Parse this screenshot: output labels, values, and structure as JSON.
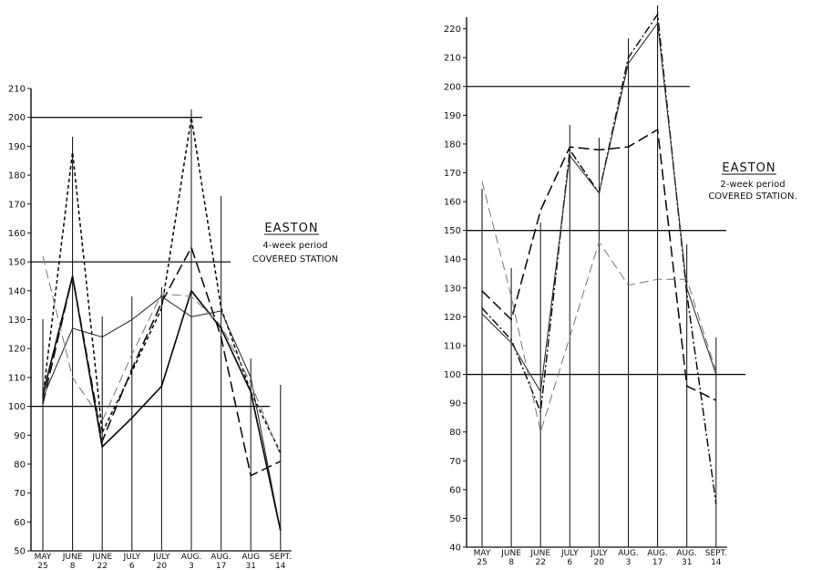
{
  "chart_data": [
    {
      "type": "line",
      "title": "EASTON",
      "subtitle_lines": [
        "4-week period",
        "COVERED STATION"
      ],
      "categories": [
        {
          "month": "MAY",
          "day": "25"
        },
        {
          "month": "JUNE",
          "day": "8"
        },
        {
          "month": "JUNE",
          "day": "22"
        },
        {
          "month": "JULY",
          "day": "6"
        },
        {
          "month": "JULY",
          "day": "20"
        },
        {
          "month": "AUG.",
          "day": "3"
        },
        {
          "month": "AUG.",
          "day": "17"
        },
        {
          "month": "AUG",
          "day": "31"
        },
        {
          "month": "SEPT.",
          "day": "14"
        }
      ],
      "ylim": [
        50,
        210
      ],
      "yticks": [
        50,
        60,
        70,
        80,
        90,
        100,
        110,
        120,
        130,
        140,
        150,
        160,
        170,
        180,
        190,
        200,
        210
      ],
      "reference_lines": [
        100,
        150,
        200
      ],
      "series": [
        {
          "style": "short-dash",
          "values": [
            103,
            188,
            91,
            112,
            134,
            200,
            134,
            105,
            84
          ]
        },
        {
          "style": "long-dash",
          "values": [
            101,
            145,
            88,
            113,
            136,
            155,
            124,
            76,
            81
          ]
        },
        {
          "style": "solid",
          "values": [
            103,
            127,
            124,
            130,
            138,
            131,
            133,
            110,
            57
          ]
        },
        {
          "style": "solid-heavy",
          "values": [
            104,
            145,
            86,
            96,
            107,
            140,
            127,
            105,
            57
          ]
        },
        {
          "style": "light-dash",
          "values": [
            152,
            110,
            95,
            118,
            139,
            138,
            128,
            108,
            83
          ]
        }
      ]
    },
    {
      "type": "line",
      "title": "EASTON",
      "subtitle_lines": [
        "2-week period",
        "COVERED STATION."
      ],
      "categories": [
        {
          "month": "MAY",
          "day": "25"
        },
        {
          "month": "JUNE",
          "day": "8"
        },
        {
          "month": "JUNE",
          "day": "22"
        },
        {
          "month": "JULY",
          "day": "6"
        },
        {
          "month": "JULY",
          "day": "20"
        },
        {
          "month": "AUG.",
          "day": "3"
        },
        {
          "month": "AUG.",
          "day": "17"
        },
        {
          "month": "AUG.",
          "day": "31"
        },
        {
          "month": "SEPT.",
          "day": "14"
        }
      ],
      "ylim": [
        40,
        224
      ],
      "yticks": [
        40,
        50,
        60,
        70,
        80,
        90,
        100,
        110,
        120,
        130,
        140,
        150,
        160,
        170,
        180,
        190,
        200,
        210,
        220
      ],
      "reference_lines": [
        100,
        150,
        200
      ],
      "series": [
        {
          "style": "dash-dot",
          "values": [
            123,
            112,
            87,
            178,
            163,
            210,
            225,
            128,
            55
          ]
        },
        {
          "style": "long-dash",
          "values": [
            129,
            119,
            157,
            179,
            178,
            179,
            185,
            96,
            91
          ]
        },
        {
          "style": "light-dash",
          "values": [
            167,
            127,
            80,
            113,
            146,
            131,
            133,
            133,
            101
          ]
        },
        {
          "style": "solid",
          "values": [
            121,
            111,
            94,
            176,
            163,
            208,
            222,
            130,
            100
          ]
        }
      ]
    }
  ]
}
